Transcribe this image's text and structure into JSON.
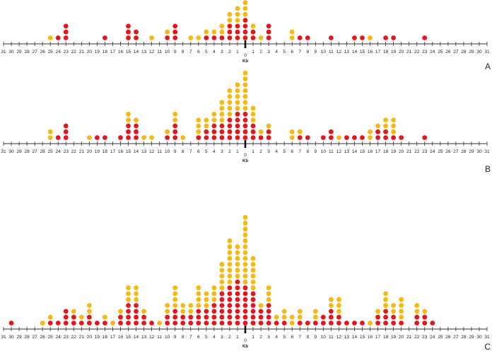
{
  "chart_data": [
    {
      "type": "scatter",
      "panel_label": "A",
      "xlabel": "Kb",
      "center_label": "0",
      "xlim": [
        -31,
        31
      ],
      "x_ticks": [
        -31,
        -30,
        -29,
        -28,
        -27,
        -26,
        -25,
        -24,
        -23,
        -22,
        -21,
        -20,
        -19,
        -18,
        -17,
        -16,
        -15,
        -14,
        -13,
        -12,
        -11,
        -10,
        -9,
        -8,
        -7,
        -6,
        -5,
        -4,
        -3,
        -2,
        -1,
        0,
        1,
        2,
        3,
        4,
        5,
        6,
        7,
        8,
        9,
        10,
        11,
        12,
        13,
        14,
        15,
        16,
        17,
        18,
        19,
        20,
        21,
        22,
        23,
        24,
        25,
        26,
        27,
        28,
        29,
        30,
        31
      ],
      "tick_labels": [
        "31",
        "30",
        "29",
        "28",
        "27",
        "26",
        "25",
        "24",
        "23",
        "22",
        "21",
        "20",
        "19",
        "18",
        "17",
        "16",
        "15",
        "14",
        "13",
        "12",
        "11",
        "10",
        "9",
        "8",
        "7",
        "6",
        "5",
        "4",
        "3",
        "2",
        "1",
        "0",
        "1",
        "2",
        "3",
        "4",
        "5",
        "6",
        "7",
        "8",
        "9",
        "10",
        "11",
        "12",
        "13",
        "14",
        "15",
        "16",
        "17",
        "18",
        "19",
        "20",
        "21",
        "22",
        "23",
        "24",
        "25",
        "26",
        "27",
        "28",
        "29",
        "30",
        "31"
      ],
      "series": [
        {
          "color": "#e8141c",
          "x": [
            -24,
            -23,
            -18,
            -15,
            -14,
            -10,
            -9,
            -5,
            -4,
            -3,
            -2,
            -1,
            0,
            1,
            3,
            7,
            8,
            11,
            14,
            15,
            18,
            19,
            23
          ],
          "count": [
            1,
            3,
            1,
            3,
            2,
            1,
            3,
            1,
            1,
            1,
            3,
            3,
            4,
            2,
            3,
            1,
            1,
            1,
            1,
            1,
            1,
            1,
            1
          ]
        },
        {
          "color": "#f8b90e",
          "x": [
            -25,
            -12,
            -10,
            -7,
            -6,
            -5,
            -4,
            -3,
            -2,
            -1,
            0,
            1,
            2,
            6,
            16
          ],
          "count": [
            1,
            1,
            1,
            1,
            1,
            1,
            1,
            2,
            2,
            3,
            3,
            1,
            1,
            2,
            1
          ]
        }
      ]
    },
    {
      "type": "scatter",
      "panel_label": "B",
      "xlabel": "Kb",
      "center_label": "0",
      "xlim": [
        -31,
        31
      ],
      "x_ticks": [
        -31,
        -30,
        -29,
        -28,
        -27,
        -26,
        -25,
        -24,
        -23,
        -22,
        -21,
        -20,
        -19,
        -18,
        -17,
        -16,
        -15,
        -14,
        -13,
        -12,
        -11,
        -10,
        -9,
        -8,
        -7,
        -6,
        -5,
        -4,
        -3,
        -2,
        -1,
        0,
        1,
        2,
        3,
        4,
        5,
        6,
        7,
        8,
        9,
        10,
        11,
        12,
        13,
        14,
        15,
        16,
        17,
        18,
        19,
        20,
        21,
        22,
        23,
        24,
        25,
        26,
        27,
        28,
        29,
        30,
        31
      ],
      "tick_labels": [
        "31",
        "30",
        "29",
        "28",
        "27",
        "26",
        "25",
        "24",
        "23",
        "22",
        "21",
        "20",
        "19",
        "18",
        "17",
        "16",
        "15",
        "14",
        "13",
        "12",
        "11",
        "10",
        "9",
        "8",
        "7",
        "6",
        "5",
        "4",
        "3",
        "2",
        "1",
        "0",
        "1",
        "2",
        "3",
        "4",
        "5",
        "6",
        "7",
        "8",
        "9",
        "10",
        "11",
        "12",
        "13",
        "14",
        "15",
        "16",
        "17",
        "18",
        "19",
        "20",
        "21",
        "22",
        "23",
        "24",
        "25",
        "26",
        "27",
        "28",
        "29",
        "30",
        "31"
      ],
      "series": [
        {
          "color": "#e8141c",
          "x": [
            -24,
            -23,
            -19,
            -18,
            -16,
            -15,
            -14,
            -10,
            -9,
            -6,
            -5,
            -4,
            -3,
            -2,
            -1,
            0,
            1,
            2,
            3,
            7,
            8,
            10,
            11,
            13,
            14,
            15,
            17,
            18,
            19,
            20,
            23
          ],
          "count": [
            1,
            3,
            1,
            1,
            1,
            3,
            3,
            1,
            3,
            1,
            2,
            3,
            3,
            4,
            5,
            5,
            3,
            1,
            2,
            1,
            1,
            1,
            2,
            1,
            1,
            1,
            2,
            2,
            1,
            1,
            1
          ]
        },
        {
          "color": "#f8b90e",
          "x": [
            -25,
            -20,
            -15,
            -14,
            -13,
            -12,
            -10,
            -9,
            -8,
            -6,
            -5,
            -4,
            -3,
            -2,
            -1,
            0,
            1,
            2,
            3,
            6,
            7,
            12,
            16,
            17,
            18,
            19
          ],
          "count": [
            2,
            1,
            2,
            1,
            1,
            1,
            1,
            2,
            1,
            3,
            2,
            2,
            4,
            5,
            5,
            7,
            3,
            1,
            1,
            2,
            1,
            1,
            2,
            1,
            2,
            3
          ]
        }
      ]
    },
    {
      "type": "scatter",
      "panel_label": "C",
      "xlabel": "Kb",
      "center_label": "0",
      "xlim": [
        -31,
        31
      ],
      "x_ticks": [
        -31,
        -30,
        -29,
        -28,
        -27,
        -26,
        -25,
        -24,
        -23,
        -22,
        -21,
        -20,
        -19,
        -18,
        -17,
        -16,
        -15,
        -14,
        -13,
        -12,
        -11,
        -10,
        -9,
        -8,
        -7,
        -6,
        -5,
        -4,
        -3,
        -2,
        -1,
        0,
        1,
        2,
        3,
        4,
        5,
        6,
        7,
        8,
        9,
        10,
        11,
        12,
        13,
        14,
        15,
        16,
        17,
        18,
        19,
        20,
        21,
        22,
        23,
        24,
        25,
        26,
        27,
        28,
        29,
        30,
        31
      ],
      "tick_labels": [
        "31",
        "30",
        "29",
        "28",
        "27",
        "26",
        "25",
        "24",
        "23",
        "22",
        "21",
        "20",
        "19",
        "18",
        "17",
        "16",
        "15",
        "14",
        "13",
        "12",
        "11",
        "10",
        "9",
        "8",
        "7",
        "6",
        "5",
        "4",
        "3",
        "2",
        "1",
        "0",
        "1",
        "2",
        "3",
        "4",
        "5",
        "6",
        "7",
        "8",
        "9",
        "10",
        "11",
        "12",
        "13",
        "14",
        "15",
        "16",
        "17",
        "18",
        "19",
        "20",
        "21",
        "22",
        "23",
        "24",
        "25",
        "26",
        "27",
        "28",
        "29",
        "30",
        "31"
      ],
      "series": [
        {
          "color": "#e8141c",
          "x": [
            -30,
            -25,
            -24,
            -23,
            -22,
            -21,
            -20,
            -19,
            -18,
            -16,
            -15,
            -14,
            -13,
            -12,
            -10,
            -9,
            -8,
            -7,
            -6,
            -5,
            -4,
            -3,
            -2,
            -1,
            0,
            1,
            2,
            3,
            4,
            5,
            7,
            8,
            9,
            10,
            11,
            12,
            13,
            14,
            15,
            17,
            18,
            19,
            20,
            22,
            23,
            24
          ],
          "count": [
            1,
            1,
            1,
            3,
            2,
            1,
            2,
            1,
            1,
            2,
            4,
            4,
            2,
            1,
            2,
            3,
            2,
            2,
            3,
            3,
            4,
            6,
            7,
            8,
            7,
            6,
            3,
            4,
            1,
            1,
            1,
            1,
            1,
            2,
            3,
            2,
            1,
            1,
            1,
            2,
            3,
            2,
            1,
            2,
            2,
            1
          ]
        },
        {
          "color": "#f8b90e",
          "x": [
            -26,
            -25,
            -22,
            -21,
            -20,
            -18,
            -17,
            -16,
            -15,
            -14,
            -13,
            -11,
            -10,
            -9,
            -8,
            -7,
            -6,
            -5,
            -4,
            -3,
            -2,
            -1,
            0,
            1,
            2,
            3,
            4,
            5,
            6,
            7,
            9,
            11,
            12,
            16,
            17,
            18,
            19,
            20,
            22,
            23
          ],
          "count": [
            1,
            1,
            1,
            1,
            2,
            1,
            1,
            1,
            3,
            3,
            1,
            1,
            2,
            4,
            2,
            2,
            4,
            3,
            3,
            5,
            8,
            6,
            12,
            6,
            1,
            3,
            1,
            2,
            2,
            2,
            2,
            2,
            3,
            1,
            1,
            3,
            2,
            4,
            2,
            1
          ]
        }
      ]
    }
  ]
}
